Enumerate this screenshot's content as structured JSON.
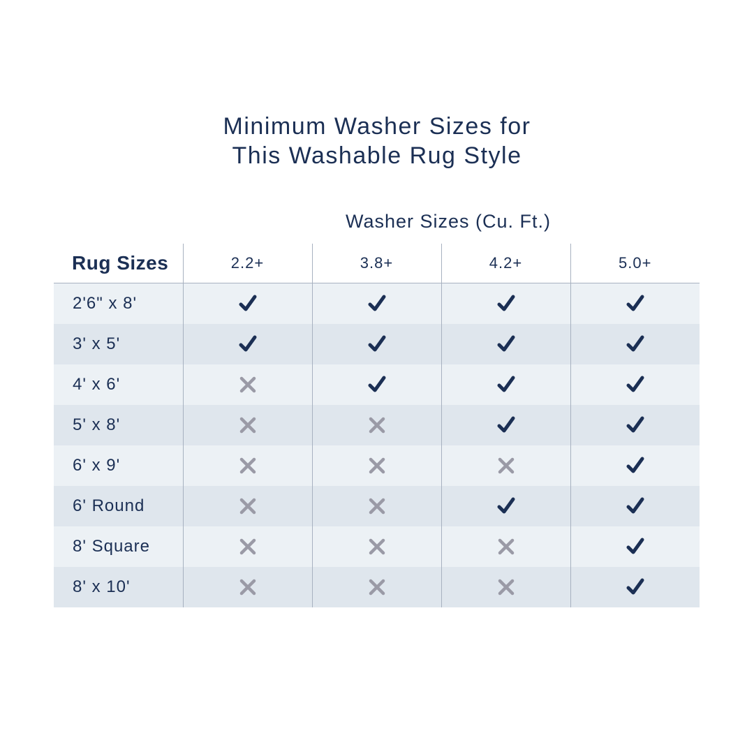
{
  "title": {
    "line1": "Minimum Washer Sizes for",
    "line2": "This Washable Rug Style"
  },
  "group_header": "Washer Sizes (Cu. Ft.)",
  "row_header": "Rug Sizes",
  "columns": [
    "2.2+",
    "3.8+",
    "4.2+",
    "5.0+"
  ],
  "colors": {
    "text": "#1b2f54",
    "check": "#1b2f54",
    "cross": "#9a9aa6",
    "row_light": "#ecf1f5",
    "row_dark": "#dfe6ed"
  },
  "rows": [
    {
      "label": "2'6\" x 8'",
      "fits": [
        true,
        true,
        true,
        true
      ]
    },
    {
      "label": "3' x 5'",
      "fits": [
        true,
        true,
        true,
        true
      ]
    },
    {
      "label": "4' x 6'",
      "fits": [
        false,
        true,
        true,
        true
      ]
    },
    {
      "label": "5' x 8'",
      "fits": [
        false,
        false,
        true,
        true
      ]
    },
    {
      "label": "6' x 9'",
      "fits": [
        false,
        false,
        false,
        true
      ]
    },
    {
      "label": "6' Round",
      "fits": [
        false,
        false,
        true,
        true
      ]
    },
    {
      "label": "8' Square",
      "fits": [
        false,
        false,
        false,
        true
      ]
    },
    {
      "label": "8' x 10'",
      "fits": [
        false,
        false,
        false,
        true
      ]
    }
  ]
}
